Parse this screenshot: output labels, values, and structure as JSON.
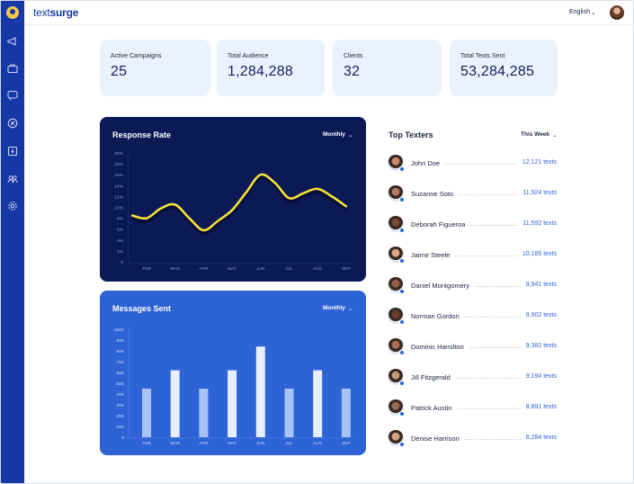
{
  "brand": {
    "part1": "text",
    "part2": "surge"
  },
  "header": {
    "language": "English",
    "chevron": "⌄"
  },
  "stats": [
    {
      "label": "Active Campaigns",
      "value": "25"
    },
    {
      "label": "Total Audience",
      "value": "1,284,288"
    },
    {
      "label": "Clients",
      "value": "32"
    },
    {
      "label": "Total Texts Sent",
      "value": "53,284,285"
    }
  ],
  "response_panel": {
    "title": "Response Rate",
    "period": "Monthly"
  },
  "messages_panel": {
    "title": "Messages Sent",
    "period": "Monthly"
  },
  "top_texters": {
    "title": "Top Texters",
    "period": "This Week",
    "rows": [
      {
        "name": "John Doe",
        "value": "12,121 texts"
      },
      {
        "name": "Suzanne Soto",
        "value": "11,924 texts"
      },
      {
        "name": "Deborah Figueroa",
        "value": "11,592 texts"
      },
      {
        "name": "Jaime Steele",
        "value": "10,185 texts"
      },
      {
        "name": "Daniel Montgomery",
        "value": "9,941 texts"
      },
      {
        "name": "Norman Gordon",
        "value": "9,502 texts"
      },
      {
        "name": "Dominic Hamilton",
        "value": "9,382 texts"
      },
      {
        "name": "Jill Fitzgerald",
        "value": "9,194 texts"
      },
      {
        "name": "Patrick Austin",
        "value": "8,891 texts"
      },
      {
        "name": "Denise Harrison",
        "value": "8,284 texts"
      }
    ]
  },
  "colors": {
    "sidebar": "#1637a6",
    "accent": "#2e63d6",
    "card_bg": "#eaf2fd",
    "dark_panel": "#0b1a55",
    "line": "#f5e13a"
  },
  "sidebar_icons": [
    "megaphone-icon",
    "briefcase-icon",
    "chat-icon",
    "circle-x-icon",
    "download-icon",
    "users-icon",
    "gear-icon"
  ],
  "chart_data": [
    {
      "type": "line",
      "categories": [
        "FEB",
        "MAR",
        "APR",
        "MAY",
        "JUN",
        "JUL",
        "AUG",
        "SEP"
      ],
      "y_ticks": [
        "20%",
        "18%",
        "16%",
        "14%",
        "12%",
        "10%",
        "8%",
        "6%",
        "4%",
        "2%",
        "0"
      ],
      "ylim": [
        0,
        20
      ],
      "x": [
        -0.5,
        0,
        0.5,
        1,
        1.5,
        2,
        2.5,
        3,
        3.5,
        4,
        4.5,
        5,
        5.5,
        6,
        6.5,
        7
      ],
      "values": [
        8.5,
        8,
        9.8,
        10.5,
        8,
        5.8,
        7.5,
        9.5,
        12.8,
        16,
        14.5,
        11.7,
        12.6,
        13.4,
        12,
        10.2
      ],
      "grid": false
    },
    {
      "type": "bar",
      "categories": [
        "FEB",
        "MAR",
        "APR",
        "MAY",
        "JUN",
        "JUL",
        "AUG",
        "SEP"
      ],
      "y_ticks": [
        "100K",
        "90K",
        "80K",
        "70K",
        "60K",
        "50K",
        "40K",
        "30K",
        "20K",
        "10K",
        "0"
      ],
      "ylim": [
        0,
        100000
      ],
      "values": [
        45000,
        62000,
        45000,
        62000,
        84000,
        45000,
        62000,
        45000
      ],
      "grid": false
    }
  ]
}
